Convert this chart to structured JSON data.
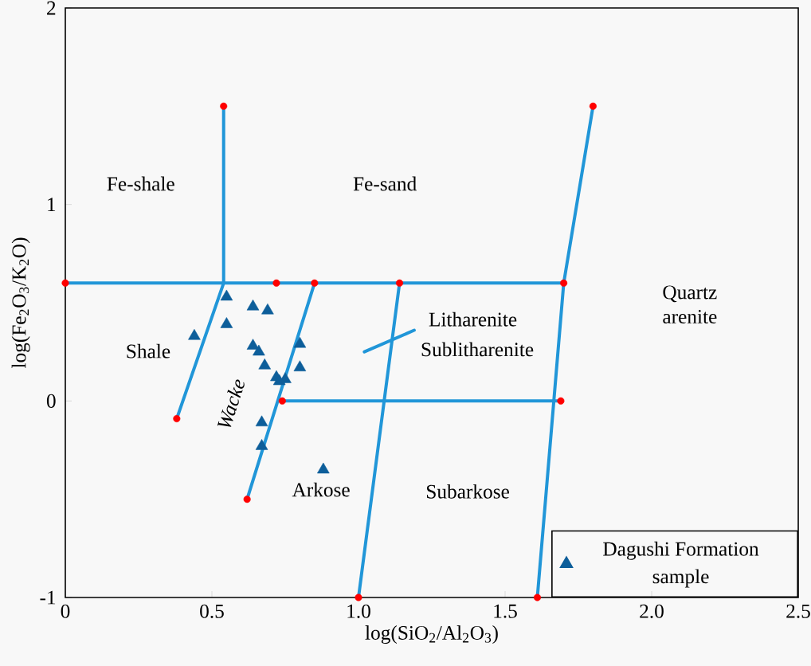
{
  "chart_data": {
    "type": "scatter",
    "xlabel": "log(SiO$_{2}$/Al$_{2}$O$_{3}$)",
    "ylabel": "log(Fe$_{2}$O$_{3}$/K$_{2}$O)",
    "xlim": [
      0,
      2.5
    ],
    "ylim": [
      -1,
      2
    ],
    "xticks": [
      0,
      0.5,
      {
        "value": 1,
        "label": "1.0"
      },
      1.5,
      {
        "value": 2,
        "label": "2.0"
      },
      2.5
    ],
    "yticks": [
      -1,
      0,
      1,
      2
    ],
    "grid": false,
    "legend": "bottom right",
    "annotations": [
      "Quartz arenite",
      "Fe-shale",
      "Fe-sand",
      "Litharenite",
      "Sublitharenite",
      "Shale",
      "Wacke",
      "Arkose",
      "Subarkose"
    ],
    "series": [
      {
        "type": "line",
        "color": "#2196d8",
        "marker": "none",
        "line_style": "solid",
        "x": [
          0,
          1.7
        ],
        "values": [
          0.6,
          0.6
        ]
      },
      {
        "type": "line",
        "color": "#2196d8",
        "marker": "none",
        "line_style": "solid",
        "x": [
          0.38,
          0.54,
          0.54
        ],
        "values": [
          -0.09,
          0.6,
          1.5
        ]
      },
      {
        "type": "line",
        "color": "#2196d8",
        "marker": "none",
        "line_style": "solid",
        "x": [
          0.62,
          0.85
        ],
        "values": [
          -0.5,
          0.6
        ]
      },
      {
        "type": "line",
        "color": "#2196d8",
        "marker": "none",
        "line_style": "solid",
        "x": [
          0.74,
          1.69
        ],
        "values": [
          0,
          0
        ]
      },
      {
        "type": "line",
        "color": "#2196d8",
        "marker": "none",
        "line_style": "solid",
        "x": [
          1.0,
          1.14
        ],
        "values": [
          -1,
          0.6
        ]
      },
      {
        "type": "line",
        "color": "#2196d8",
        "marker": "none",
        "line_style": "solid",
        "x": [
          1.61,
          1.7,
          1.8
        ],
        "values": [
          -1,
          0.6,
          1.5
        ]
      },
      {
        "type": "line",
        "color": "#2196d8",
        "marker": "none",
        "line_style": "solid",
        "x": [
          1.02,
          1.19
        ],
        "values": [
          0.25,
          0.36
        ]
      },
      {
        "color": "#ff0000",
        "marker": "circle",
        "x": [
          0,
          0.54,
          0.72,
          0.85,
          1.14,
          1.7,
          1.8,
          0.38,
          0.62,
          0.74,
          1.69,
          1.0,
          1.61
        ],
        "values": [
          0.6,
          1.5,
          0.6,
          0.6,
          0.6,
          0.6,
          1.5,
          -0.09,
          -0.5,
          0,
          0,
          -1,
          -1
        ]
      },
      {
        "name": "Dagushi Formation sample",
        "color": "#0d5e9a",
        "marker": "triangle",
        "x": [
          0.55,
          0.64,
          0.69,
          0.55,
          0.44,
          0.64,
          0.66,
          0.68,
          0.8,
          0.8,
          0.72,
          0.75,
          0.73,
          0.67,
          0.67,
          0.88
        ],
        "values": [
          0.53,
          0.48,
          0.46,
          0.39,
          0.33,
          0.28,
          0.25,
          0.18,
          0.29,
          0.17,
          0.12,
          0.11,
          0.1,
          -0.11,
          -0.23,
          -0.35
        ]
      }
    ]
  }
}
